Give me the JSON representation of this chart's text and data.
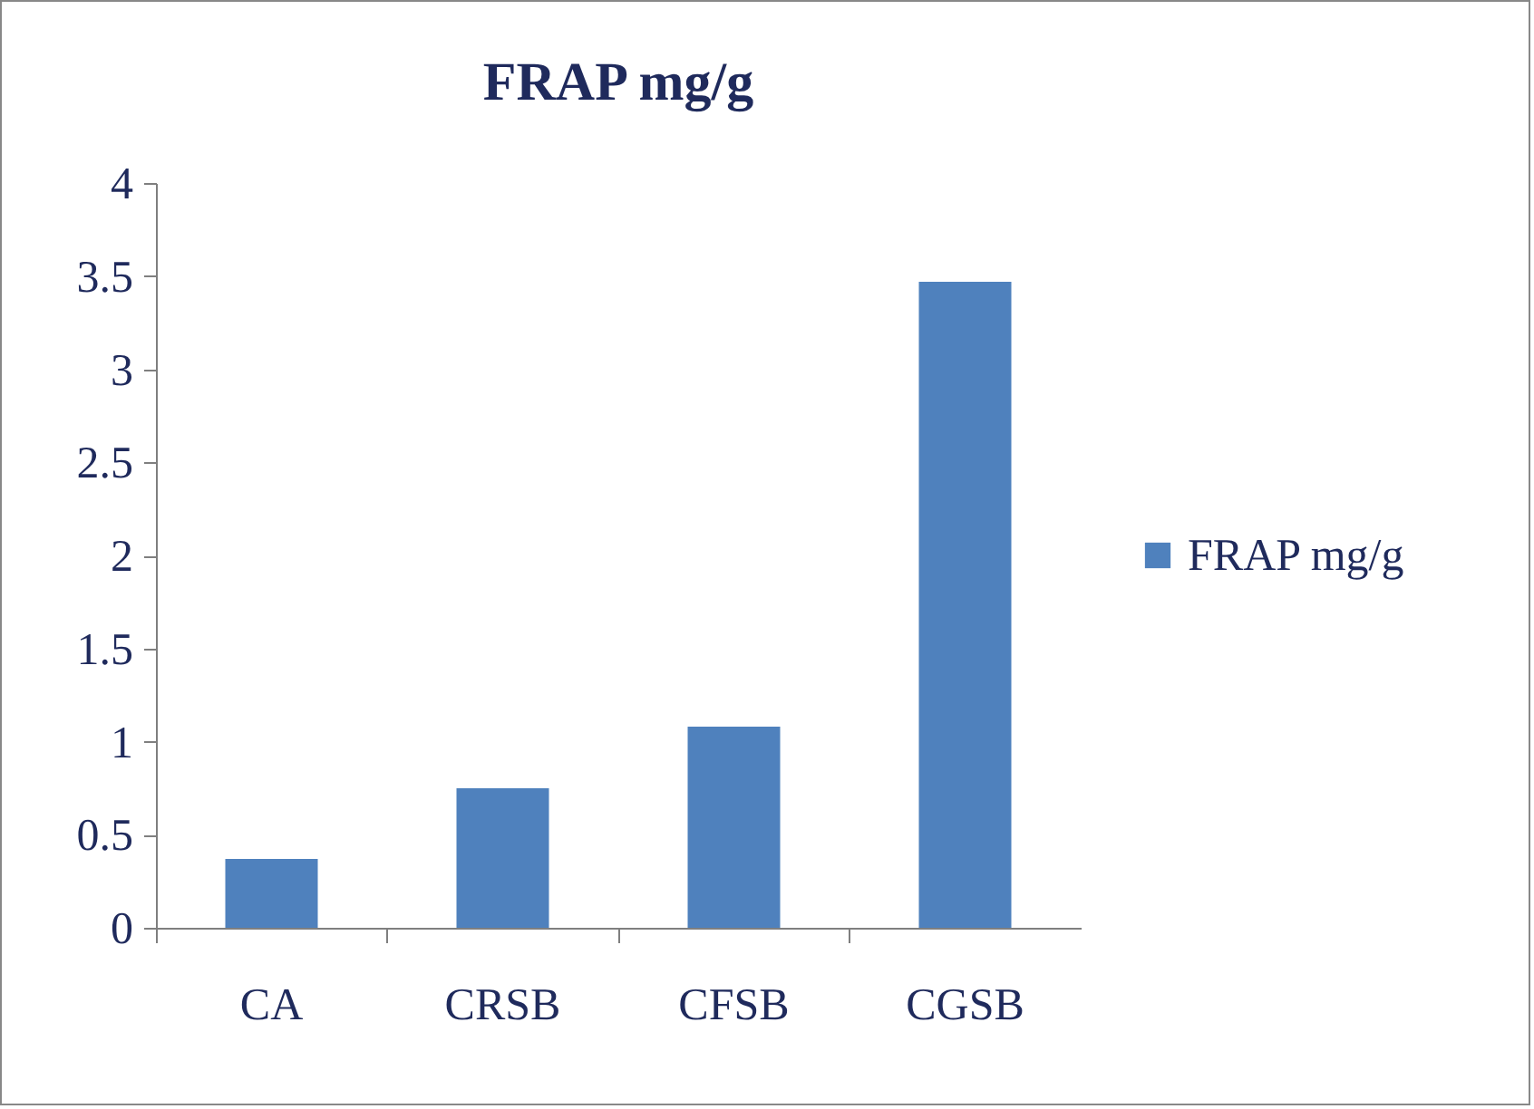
{
  "chart_data": {
    "type": "bar",
    "title": "FRAP mg/g",
    "categories": [
      "CA",
      "CRSB",
      "CFSB",
      "CGSB"
    ],
    "series": [
      {
        "name": "FRAP mg/g",
        "color": "#4f81bd",
        "values": [
          0.37,
          0.75,
          1.08,
          3.47
        ]
      }
    ],
    "ylim": [
      0,
      4
    ],
    "yticks": [
      0,
      0.5,
      1,
      1.5,
      2,
      2.5,
      3,
      3.5,
      4
    ],
    "grid": false,
    "legend": "right"
  }
}
